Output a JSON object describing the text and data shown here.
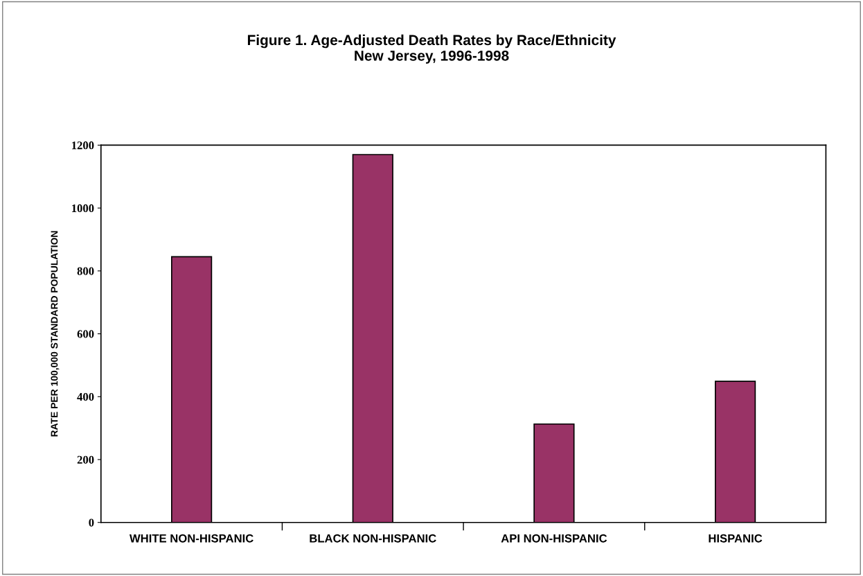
{
  "chart_data": {
    "type": "bar",
    "title": "Figure 1. Age-Adjusted Death Rates by Race/Ethnicity\nNew Jersey, 1996-1998",
    "ylabel": "RATE PER 100,000 STANDARD POPULATION",
    "categories": [
      "WHITE NON-HISPANIC",
      "BLACK NON-HISPANIC",
      "API NON-HISPANIC",
      "HISPANIC"
    ],
    "values": [
      845,
      1170,
      313,
      449
    ],
    "color": "#993366",
    "ylim": [
      0,
      1200
    ],
    "yticks": [
      0,
      200,
      400,
      600,
      800,
      1000,
      1200
    ],
    "grid": false
  }
}
